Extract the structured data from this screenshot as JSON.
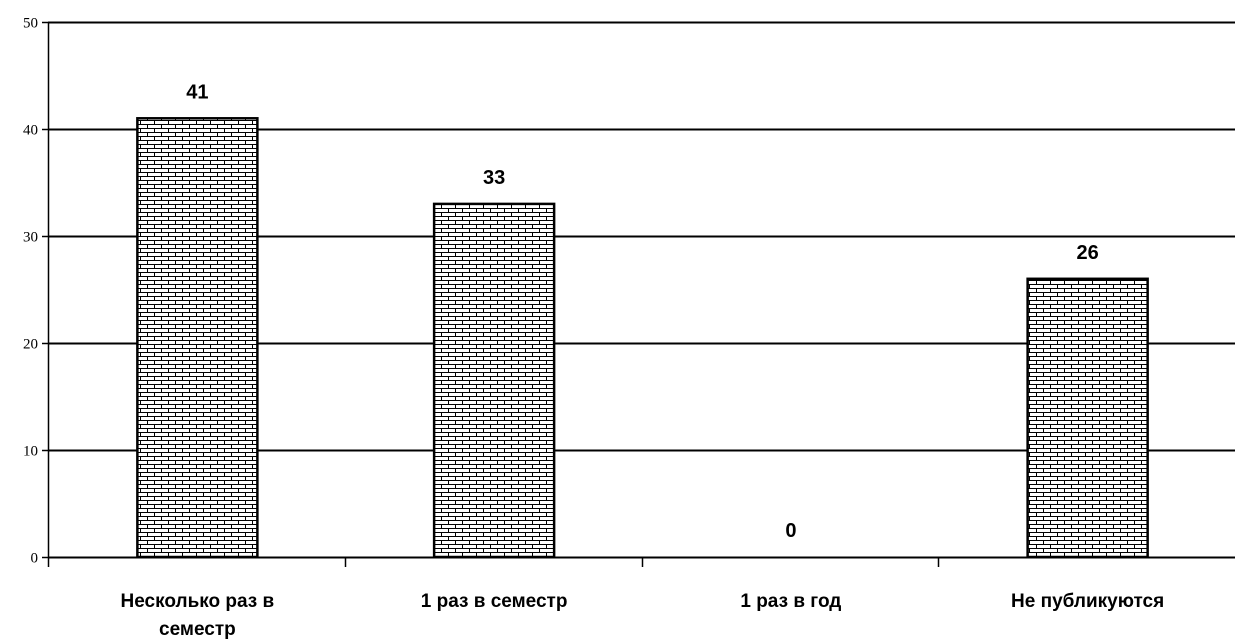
{
  "chart_data": {
    "type": "bar",
    "categories": [
      [
        "Несколько раз в",
        "семестр"
      ],
      [
        "1 раз в семестр"
      ],
      [
        "1 раз в год"
      ],
      [
        "Не публикуются"
      ]
    ],
    "values": [
      41,
      33,
      0,
      26
    ],
    "data_labels": [
      "41",
      "33",
      "0",
      "26"
    ],
    "ylim": [
      0,
      50
    ],
    "yticks": [
      0,
      10,
      20,
      30,
      40,
      50
    ],
    "grid": true,
    "bar_fill": "brick-pattern",
    "colors": {
      "bar_stroke": "#000000",
      "brick_fill": "#ffffff",
      "brick_line": "#000000",
      "grid": "#000000"
    }
  }
}
